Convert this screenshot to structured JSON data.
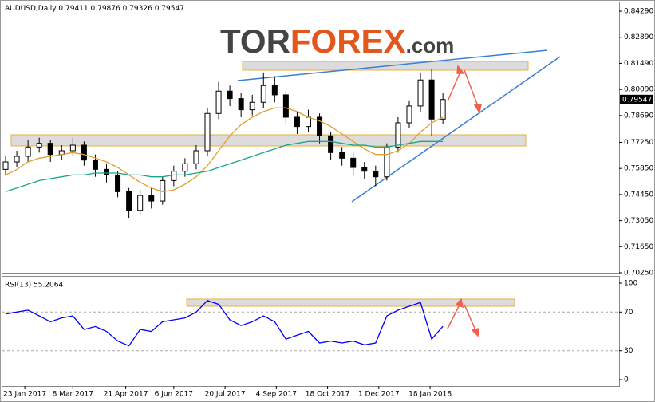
{
  "logo": {
    "part1": "TOR",
    "part2": "FOREX",
    "part3": ".com"
  },
  "chart_data": [
    {
      "type": "candlestick",
      "title": "AUDUSD,Daily",
      "header_values": [
        0.79411,
        0.79876,
        0.79326,
        0.79547
      ],
      "x": [
        0,
        7,
        14,
        21,
        28,
        35,
        42,
        49,
        56,
        63,
        70,
        77,
        84,
        91,
        98,
        105,
        112,
        119,
        126,
        133,
        140,
        147,
        154,
        161,
        168,
        175,
        182,
        189,
        196,
        203,
        210,
        217,
        224,
        231,
        238,
        245,
        252,
        259,
        266,
        273
      ],
      "open": [
        0.758,
        0.762,
        0.765,
        0.77,
        0.772,
        0.766,
        0.768,
        0.771,
        0.763,
        0.758,
        0.755,
        0.746,
        0.736,
        0.744,
        0.741,
        0.752,
        0.757,
        0.761,
        0.768,
        0.788,
        0.8,
        0.796,
        0.79,
        0.794,
        0.803,
        0.798,
        0.786,
        0.781,
        0.786,
        0.776,
        0.767,
        0.764,
        0.759,
        0.757,
        0.754,
        0.77,
        0.783,
        0.792,
        0.806,
        0.785
      ],
      "high": [
        0.765,
        0.768,
        0.774,
        0.775,
        0.774,
        0.771,
        0.775,
        0.773,
        0.766,
        0.761,
        0.757,
        0.748,
        0.747,
        0.748,
        0.754,
        0.76,
        0.764,
        0.771,
        0.791,
        0.805,
        0.803,
        0.799,
        0.798,
        0.81,
        0.808,
        0.8,
        0.789,
        0.79,
        0.788,
        0.778,
        0.77,
        0.767,
        0.762,
        0.76,
        0.772,
        0.786,
        0.795,
        0.81,
        0.812,
        0.7988
      ],
      "low": [
        0.755,
        0.759,
        0.762,
        0.767,
        0.762,
        0.763,
        0.765,
        0.76,
        0.754,
        0.751,
        0.743,
        0.732,
        0.734,
        0.737,
        0.739,
        0.749,
        0.754,
        0.758,
        0.765,
        0.785,
        0.792,
        0.786,
        0.787,
        0.791,
        0.794,
        0.782,
        0.777,
        0.778,
        0.772,
        0.763,
        0.76,
        0.755,
        0.753,
        0.749,
        0.752,
        0.767,
        0.78,
        0.789,
        0.776,
        0.7825
      ],
      "close": [
        0.762,
        0.765,
        0.77,
        0.772,
        0.766,
        0.768,
        0.771,
        0.763,
        0.758,
        0.755,
        0.746,
        0.736,
        0.744,
        0.741,
        0.752,
        0.757,
        0.761,
        0.768,
        0.788,
        0.8,
        0.796,
        0.79,
        0.794,
        0.803,
        0.798,
        0.786,
        0.781,
        0.786,
        0.776,
        0.767,
        0.764,
        0.759,
        0.757,
        0.754,
        0.77,
        0.783,
        0.792,
        0.806,
        0.785,
        0.7955
      ],
      "series": [
        {
          "color": "#e0a030",
          "values": [
            0.755,
            0.758,
            0.762,
            0.764,
            0.765,
            0.766,
            0.767,
            0.766,
            0.764,
            0.762,
            0.759,
            0.755,
            0.751,
            0.748,
            0.746,
            0.747,
            0.75,
            0.754,
            0.76,
            0.768,
            0.776,
            0.782,
            0.786,
            0.789,
            0.791,
            0.791,
            0.789,
            0.786,
            0.784,
            0.781,
            0.777,
            0.773,
            0.769,
            0.766,
            0.766,
            0.768,
            0.772,
            0.778,
            0.783,
            0.786
          ]
        },
        {
          "color": "#1aa58a",
          "values": [
            0.746,
            0.748,
            0.75,
            0.752,
            0.753,
            0.754,
            0.755,
            0.755,
            0.756,
            0.756,
            0.756,
            0.755,
            0.755,
            0.754,
            0.754,
            0.755,
            0.755,
            0.756,
            0.757,
            0.759,
            0.761,
            0.763,
            0.765,
            0.767,
            0.769,
            0.771,
            0.772,
            0.773,
            0.773,
            0.773,
            0.772,
            0.771,
            0.771,
            0.77,
            0.77,
            0.771,
            0.772,
            0.773,
            0.773,
            0.773
          ]
        }
      ],
      "last_price": 0.79547,
      "xlim": [
        -2,
        383
      ],
      "xticks": [
        {
          "value": 12,
          "label": "23 Jan 2017"
        },
        {
          "value": 42,
          "label": "8 Mar 2017"
        },
        {
          "value": 75,
          "label": "21 Apr 2017"
        },
        {
          "value": 105,
          "label": "6 Jun 2017"
        },
        {
          "value": 137,
          "label": "20 Jul 2017"
        },
        {
          "value": 169,
          "label": "4 Sep 2017"
        },
        {
          "value": 201,
          "label": "18 Oct 2017"
        },
        {
          "value": 233,
          "label": "1 Dec 2017"
        },
        {
          "value": 265,
          "label": "18 Jan 2018"
        }
      ],
      "ylim": [
        0.7025,
        0.8472
      ],
      "yticks": [
        {
          "value": 0.8429,
          "label": "0.84290"
        },
        {
          "value": 0.8289,
          "label": "0.82890"
        },
        {
          "value": 0.8149,
          "label": "0.81490"
        },
        {
          "value": 0.8009,
          "label": "0.80090"
        },
        {
          "value": 0.7869,
          "label": "0.78690"
        },
        {
          "value": 0.7725,
          "label": "0.77250"
        },
        {
          "value": 0.7585,
          "label": "0.75850"
        },
        {
          "value": 0.7445,
          "label": "0.74450"
        },
        {
          "value": 0.7305,
          "label": "0.73050"
        },
        {
          "value": 0.7165,
          "label": "0.71650"
        },
        {
          "value": 0.7025,
          "label": "0.70250"
        }
      ]
    },
    {
      "type": "line",
      "title": "RSI(13) 55.2064",
      "x": [
        0,
        7,
        14,
        21,
        28,
        35,
        42,
        49,
        56,
        63,
        70,
        77,
        84,
        91,
        98,
        105,
        112,
        119,
        126,
        133,
        140,
        147,
        154,
        161,
        168,
        175,
        182,
        189,
        196,
        203,
        210,
        217,
        224,
        231,
        238,
        245,
        252,
        259,
        266,
        273
      ],
      "series": [
        {
          "color": "#0000ff",
          "values": [
            68,
            70,
            72,
            66,
            60,
            64,
            66,
            52,
            55,
            50,
            40,
            35,
            52,
            50,
            60,
            62,
            64,
            70,
            82,
            78,
            62,
            56,
            60,
            66,
            60,
            42,
            46,
            50,
            38,
            40,
            38,
            40,
            36,
            38,
            66,
            72,
            76,
            80,
            42,
            55.2064
          ]
        }
      ],
      "xlim": [
        -2,
        383
      ],
      "ylim": [
        0,
        100
      ],
      "yticks": [
        100,
        70,
        30,
        0
      ],
      "levels": [
        70,
        30
      ]
    }
  ]
}
